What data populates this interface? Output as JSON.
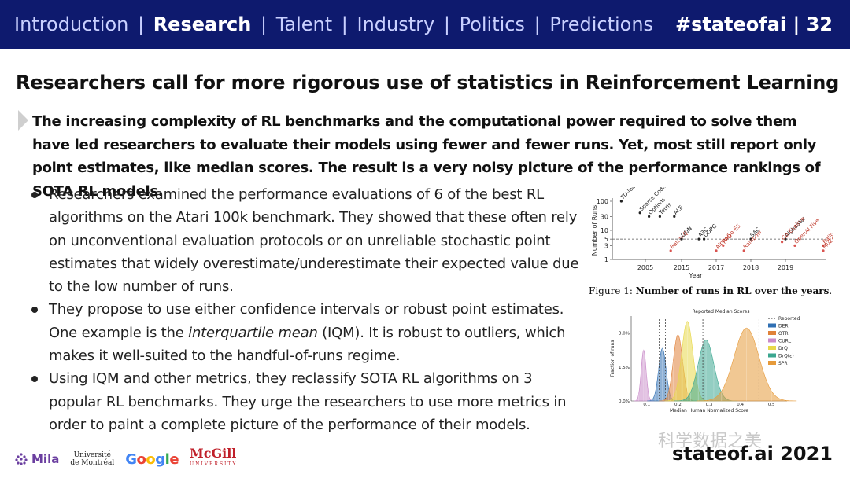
{
  "header": {
    "nav": [
      "Introduction",
      "Research",
      "Talent",
      "Industry",
      "Politics",
      "Predictions"
    ],
    "active": "Research",
    "hashtag": "#stateofai | 32"
  },
  "slide": {
    "title": "Researchers call for more rigorous use of statistics in Reinforcement Learning",
    "lead": "The increasing complexity of RL benchmarks and the computational power required to solve them have led researchers to evaluate their models using fewer and fewer runs. Yet, most still report only point estimates, like median scores. The result is a very noisy picture of the performance rankings of SOTA RL models.",
    "bullets": [
      {
        "text": "Researchers examined the performance evaluations of 6 of the best RL algorithms on the Atari 100k benchmark. They showed that these often rely on unconventional evaluation protocols or on unreliable stochastic point estimates that widely overestimate/underestimate their expected value due to the low number of runs."
      },
      {
        "pre": "They propose to use either confidence intervals or robust point estimates. One example is the ",
        "em": "interquartile mean",
        "post": " (IQM). It is robust to outliers, which makes it well-suited to the handful-of-runs regime."
      },
      {
        "text": "Using IQM and other metrics, they reclassify SOTA RL algorithms on 3 popular RL benchmarks. They urge the researchers to use more metrics in order to paint a complete picture of the performance of their models."
      }
    ]
  },
  "figure1": {
    "caption_prefix": "Figure 1: ",
    "caption_bold": "Number of runs in RL over the years",
    "caption_suffix": ".",
    "ylabel": "Number of Runs",
    "xlabel": "Year",
    "yticks": [
      "100",
      "30",
      "10",
      "5",
      "3",
      "1"
    ],
    "xticks": [
      "2005",
      "2015",
      "2017",
      "2018",
      "2019"
    ],
    "points": [
      {
        "label": "TD-learning",
        "x": 2000.5,
        "y": 100
      },
      {
        "label": "Sparse Coding",
        "x": 2004,
        "y": 40
      },
      {
        "label": "Options",
        "x": 2006,
        "y": 30
      },
      {
        "label": "Tetris",
        "x": 2009,
        "y": 30
      },
      {
        "label": "ALE",
        "x": 2013,
        "y": 30
      },
      {
        "label": "Batch-Q",
        "x": 2012,
        "y": 2
      },
      {
        "label": "DQN",
        "x": 2015,
        "y": 5
      },
      {
        "label": "A3C",
        "x": 2016,
        "y": 5
      },
      {
        "label": "DDPG",
        "x": 2016.3,
        "y": 5
      },
      {
        "label": "AlphaGo-ES",
        "x": 2017,
        "y": 2
      },
      {
        "label": "PPO",
        "x": 2017.2,
        "y": 3
      },
      {
        "label": "SAC",
        "x": 2018,
        "y": 5
      },
      {
        "label": "Rainbow",
        "x": 2017.8,
        "y": 2
      },
      {
        "label": "AlphaStar",
        "x": 2019,
        "y": 5
      },
      {
        "label": "Go-Explore",
        "x": 2018.9,
        "y": 4
      },
      {
        "label": "OpenAI Five",
        "x": 2019.3,
        "y": 3
      },
      {
        "label": "Balloons",
        "x": 2020.5,
        "y": 3
      },
      {
        "label": "MuZero",
        "x": 2020.2,
        "y": 2
      }
    ]
  },
  "figure2": {
    "title": "Reported Median Scores",
    "xlabel": "Median Human Normalized Score",
    "ylabel": "Fraction of runs",
    "yticks": [
      "3.0%",
      "1.5%",
      "0.0%"
    ],
    "xticks": [
      "0.1",
      "0.2",
      "0.3",
      "0.4",
      "0.5"
    ],
    "legend": [
      {
        "name": "Reported",
        "color": "#333333",
        "dashed": true
      },
      {
        "name": "DER",
        "color": "#2f6fb3"
      },
      {
        "name": "OTR",
        "color": "#e0823a"
      },
      {
        "name": "CURL",
        "color": "#c98ac9"
      },
      {
        "name": "DrQ",
        "color": "#e8d84a"
      },
      {
        "name": "DrQ(ε)",
        "color": "#3aa68f"
      },
      {
        "name": "SPR",
        "color": "#e69a3a"
      }
    ],
    "distributions": [
      {
        "name": "CURL",
        "mean": 0.09,
        "sd": 0.008,
        "peak": 0.6
      },
      {
        "name": "DER",
        "mean": 0.15,
        "sd": 0.012,
        "peak": 0.62
      },
      {
        "name": "OTR",
        "mean": 0.2,
        "sd": 0.015,
        "peak": 0.78
      },
      {
        "name": "DrQ",
        "mean": 0.23,
        "sd": 0.018,
        "peak": 0.94
      },
      {
        "name": "DrQ(ε)",
        "mean": 0.29,
        "sd": 0.025,
        "peak": 0.72
      },
      {
        "name": "SPR",
        "mean": 0.42,
        "sd": 0.04,
        "peak": 0.86
      }
    ],
    "reported": [
      0.14,
      0.16,
      0.2,
      0.28,
      0.46
    ]
  },
  "footer": {
    "mila": "Mila",
    "udem_line1": "Université",
    "udem_line2": "de Montréal",
    "google": "Google",
    "mcgill": "McGill",
    "mcgill_sub": "UNIVERSITY",
    "watermark": "科学数据之美",
    "brand": "stateof.ai 2021"
  }
}
